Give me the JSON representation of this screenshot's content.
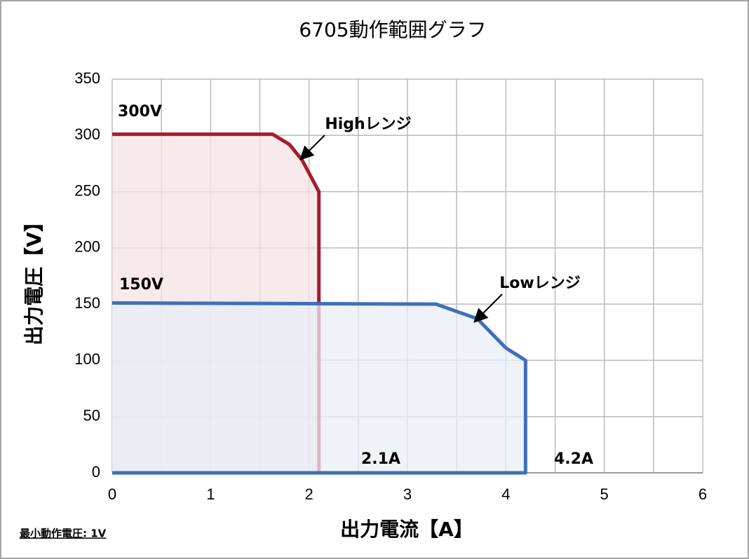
{
  "chart_data": {
    "type": "line",
    "title": "6705動作範囲グラフ",
    "x_label": "出力電流【A】",
    "y_label": "出力電圧【V】",
    "xlim": [
      0,
      6
    ],
    "ylim": [
      0,
      350
    ],
    "xticks": [
      0,
      1,
      2,
      3,
      4,
      5,
      6
    ],
    "x_grid": [
      0,
      0.5,
      1,
      1.5,
      2,
      2.5,
      3,
      3.5,
      4,
      4.5,
      5,
      5.5,
      6
    ],
    "yticks": [
      0,
      50,
      100,
      150,
      200,
      250,
      300,
      350
    ],
    "grid": true,
    "series": [
      {
        "name": "Highレンジ",
        "color": "#a51d2d",
        "fill": "#f5e3e4",
        "x": [
          0,
          1.63,
          1.8,
          1.93,
          2.1,
          2.1,
          0
        ],
        "values": [
          301,
          301,
          292,
          278,
          250,
          0,
          0
        ]
      },
      {
        "name": "Lowレンジ",
        "color": "#3e70b8",
        "fill": "#e8eef7",
        "x": [
          0,
          3.29,
          3.71,
          4.0,
          4.2,
          4.2,
          0
        ],
        "values": [
          151,
          150,
          137,
          111,
          100,
          0,
          0
        ]
      }
    ],
    "annotations": [
      "300V",
      "150V",
      "2.1A",
      "4.2A"
    ],
    "footnote": "最小動作電圧: 1V"
  }
}
